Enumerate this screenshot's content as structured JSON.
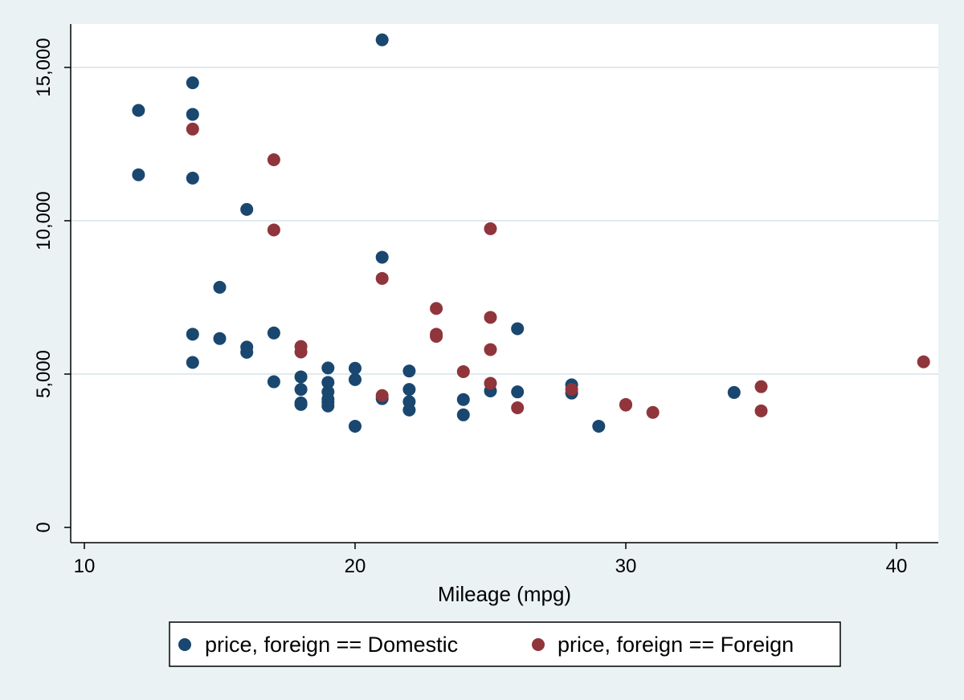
{
  "chart_data": {
    "type": "scatter",
    "title": "",
    "xlabel": "Mileage (mpg)",
    "ylabel": "",
    "xlim": [
      10,
      41
    ],
    "ylim": [
      0,
      16000
    ],
    "x_ticks": [
      10,
      20,
      30,
      40
    ],
    "x_tick_labels": [
      "10",
      "20",
      "30",
      "40"
    ],
    "y_ticks": [
      0,
      5000,
      10000,
      15000
    ],
    "y_tick_labels": [
      "0",
      "5,000",
      "10,000",
      "15,000"
    ],
    "grid": "horizontal",
    "legend_position": "bottom",
    "colors": {
      "plot_bg": "#ffffff",
      "outer_bg": "#eaf2f3",
      "grid": "#e1eaee"
    },
    "series": [
      {
        "name": "price, foreign == Domestic",
        "color": "#1a476f",
        "points": [
          {
            "x": 12,
            "y": 13600
          },
          {
            "x": 12,
            "y": 11500
          },
          {
            "x": 14,
            "y": 14500
          },
          {
            "x": 14,
            "y": 13470
          },
          {
            "x": 14,
            "y": 11390
          },
          {
            "x": 14,
            "y": 6300
          },
          {
            "x": 14,
            "y": 5380
          },
          {
            "x": 15,
            "y": 7830
          },
          {
            "x": 15,
            "y": 6160
          },
          {
            "x": 16,
            "y": 10370
          },
          {
            "x": 16,
            "y": 5880
          },
          {
            "x": 16,
            "y": 5710
          },
          {
            "x": 17,
            "y": 6340
          },
          {
            "x": 17,
            "y": 4750
          },
          {
            "x": 18,
            "y": 4910
          },
          {
            "x": 18,
            "y": 4500
          },
          {
            "x": 18,
            "y": 4060
          },
          {
            "x": 18,
            "y": 4010
          },
          {
            "x": 19,
            "y": 5200
          },
          {
            "x": 19,
            "y": 4730
          },
          {
            "x": 19,
            "y": 4420
          },
          {
            "x": 19,
            "y": 4180
          },
          {
            "x": 19,
            "y": 4080
          },
          {
            "x": 19,
            "y": 3960
          },
          {
            "x": 20,
            "y": 5190
          },
          {
            "x": 20,
            "y": 4820
          },
          {
            "x": 20,
            "y": 3300
          },
          {
            "x": 21,
            "y": 15900
          },
          {
            "x": 21,
            "y": 8810
          },
          {
            "x": 21,
            "y": 4200
          },
          {
            "x": 22,
            "y": 5100
          },
          {
            "x": 22,
            "y": 4500
          },
          {
            "x": 22,
            "y": 4100
          },
          {
            "x": 22,
            "y": 3830
          },
          {
            "x": 24,
            "y": 4170
          },
          {
            "x": 24,
            "y": 3670
          },
          {
            "x": 25,
            "y": 4450
          },
          {
            "x": 26,
            "y": 6480
          },
          {
            "x": 26,
            "y": 4420
          },
          {
            "x": 28,
            "y": 4650
          },
          {
            "x": 28,
            "y": 4380
          },
          {
            "x": 29,
            "y": 3300
          },
          {
            "x": 34,
            "y": 4400
          }
        ]
      },
      {
        "name": "price, foreign == Foreign",
        "color": "#90353b",
        "points": [
          {
            "x": 14,
            "y": 12990
          },
          {
            "x": 17,
            "y": 11990
          },
          {
            "x": 17,
            "y": 9700
          },
          {
            "x": 18,
            "y": 5900
          },
          {
            "x": 18,
            "y": 5720
          },
          {
            "x": 21,
            "y": 8120
          },
          {
            "x": 21,
            "y": 4300
          },
          {
            "x": 23,
            "y": 7140
          },
          {
            "x": 23,
            "y": 6300
          },
          {
            "x": 23,
            "y": 6230
          },
          {
            "x": 24,
            "y": 5080
          },
          {
            "x": 25,
            "y": 9740
          },
          {
            "x": 25,
            "y": 6850
          },
          {
            "x": 25,
            "y": 5800
          },
          {
            "x": 25,
            "y": 4700
          },
          {
            "x": 26,
            "y": 3900
          },
          {
            "x": 28,
            "y": 4500
          },
          {
            "x": 30,
            "y": 4010
          },
          {
            "x": 30,
            "y": 3990
          },
          {
            "x": 31,
            "y": 3750
          },
          {
            "x": 35,
            "y": 4590
          },
          {
            "x": 35,
            "y": 3800
          },
          {
            "x": 41,
            "y": 5400
          }
        ]
      }
    ]
  }
}
